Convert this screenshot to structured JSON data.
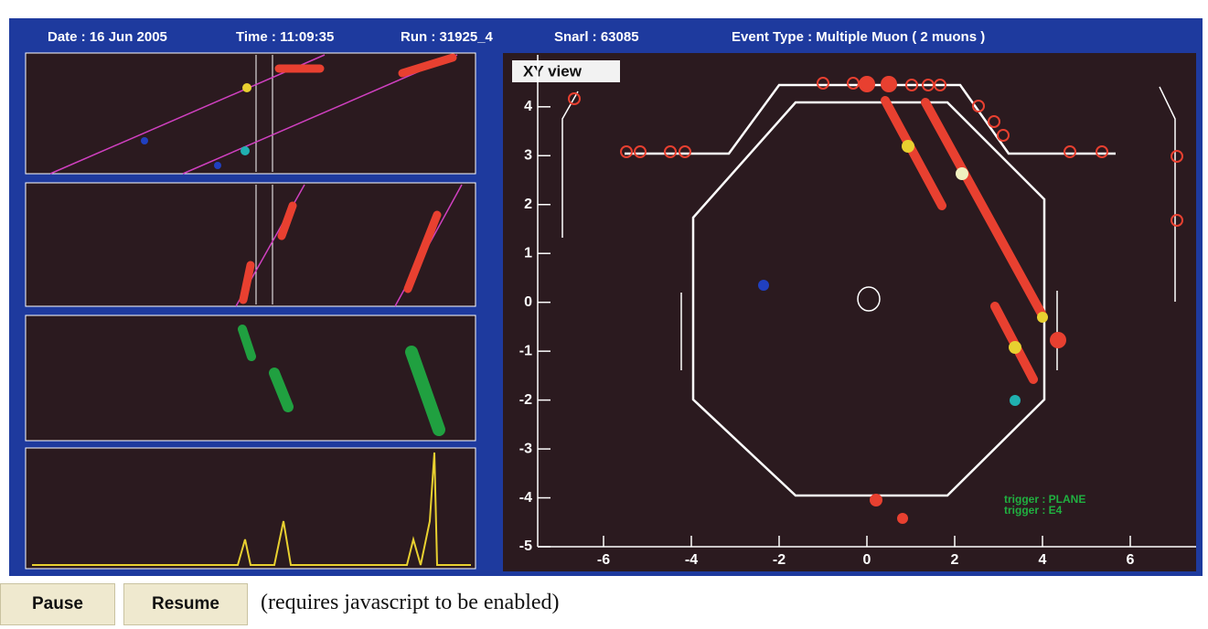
{
  "header": {
    "date": "Date : 16 Jun 2005",
    "time": "Time : 11:09:35",
    "run": "Run : 31925_4",
    "snarl": "Snarl : 63085",
    "event_type": "Event Type : Multiple Muon ( 2 muons )"
  },
  "xy_view": {
    "title": "XY view",
    "xlim": [
      -7.5,
      7.5
    ],
    "ylim": [
      -5,
      5.1
    ],
    "xticks": [
      -6,
      -4,
      -2,
      0,
      2,
      4,
      6
    ],
    "yticks": [
      -5,
      -4,
      -3,
      -2,
      -1,
      0,
      1,
      2,
      3,
      4
    ],
    "triggers": [
      "trigger : PLANE",
      "trigger : E4"
    ]
  },
  "controls": {
    "pause": "Pause",
    "resume": "Resume",
    "note": "(requires javascript to be enabled)"
  }
}
